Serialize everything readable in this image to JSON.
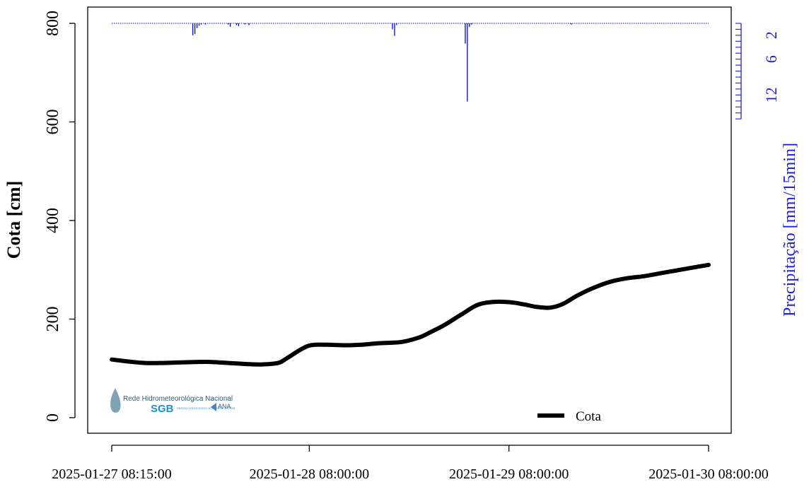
{
  "chart_data": {
    "type": "line",
    "ylabel": "Cota [cm]",
    "y2label": "Precipitação [mm/15min]",
    "ylim": [
      0,
      800
    ],
    "yticks": [
      0,
      200,
      400,
      600,
      800
    ],
    "y2lim_reversed": [
      0,
      16
    ],
    "y2tick_labels": [
      "2",
      "6",
      "12"
    ],
    "y2tick_values": [
      2,
      6,
      12
    ],
    "y2minor_ticks": [
      0,
      1,
      2,
      3,
      4,
      5,
      6,
      7,
      8,
      9,
      10,
      11,
      12,
      13,
      14,
      15,
      16
    ],
    "x_start": "2025-01-27 08:15:00",
    "x_end": "2025-01-30 08:00:00",
    "xtick_labels": [
      "2025-01-27 08:15:00",
      "2025-01-28 08:00:00",
      "2025-01-29 08:00:00",
      "2025-01-30 08:00:00"
    ],
    "xtick_hours": [
      0,
      23.75,
      47.75,
      71.75
    ],
    "series": [
      {
        "name": "Cota",
        "color": "#000000",
        "hours": [
          0,
          2,
          4,
          6,
          8,
          10,
          12,
          14,
          16,
          18,
          20,
          21,
          22.5,
          23.5,
          24.5,
          26,
          28,
          30,
          32,
          33.5,
          35,
          37,
          38.5,
          40,
          42,
          44,
          46,
          48,
          49.5,
          51,
          52.5,
          53.5,
          54.5,
          56,
          58,
          60,
          62,
          64,
          66,
          68,
          70,
          71.75
        ],
        "values": [
          118,
          114,
          111,
          111,
          112,
          113,
          113,
          111,
          109,
          108,
          111,
          120,
          136,
          145,
          148,
          148,
          147,
          148,
          151,
          152,
          154,
          163,
          175,
          188,
          209,
          229,
          235,
          234,
          230,
          225,
          223,
          226,
          233,
          248,
          264,
          276,
          283,
          287,
          293,
          299,
          305,
          310
        ]
      }
    ],
    "precipitation": {
      "name": "Precipitação",
      "color": "#0000ff",
      "hours": [
        9.75,
        10.0,
        10.25,
        10.5,
        10.75,
        11.25,
        14.0,
        14.25,
        15.0,
        15.25,
        16.0,
        16.5,
        33.75,
        34.0,
        34.25,
        42.5,
        42.75,
        43.0,
        43.25,
        55.25
      ],
      "values": [
        2.0,
        1.8,
        0.8,
        0.4,
        0.2,
        0.2,
        0.2,
        0.6,
        0.3,
        0.5,
        0.2,
        0.3,
        1.0,
        2.1,
        0.3,
        3.4,
        13.1,
        0.6,
        0.2,
        0.2
      ]
    },
    "legend": {
      "label": "Cota",
      "placement": "bottom-right"
    }
  },
  "logos": {
    "rede": "Rede Hidrometeorológica Nacional",
    "sgb": "SGB",
    "sgb_sub": "SERVIÇO GEOLÓGICO DO BRASIL – CPRM",
    "ana": "ANA"
  }
}
